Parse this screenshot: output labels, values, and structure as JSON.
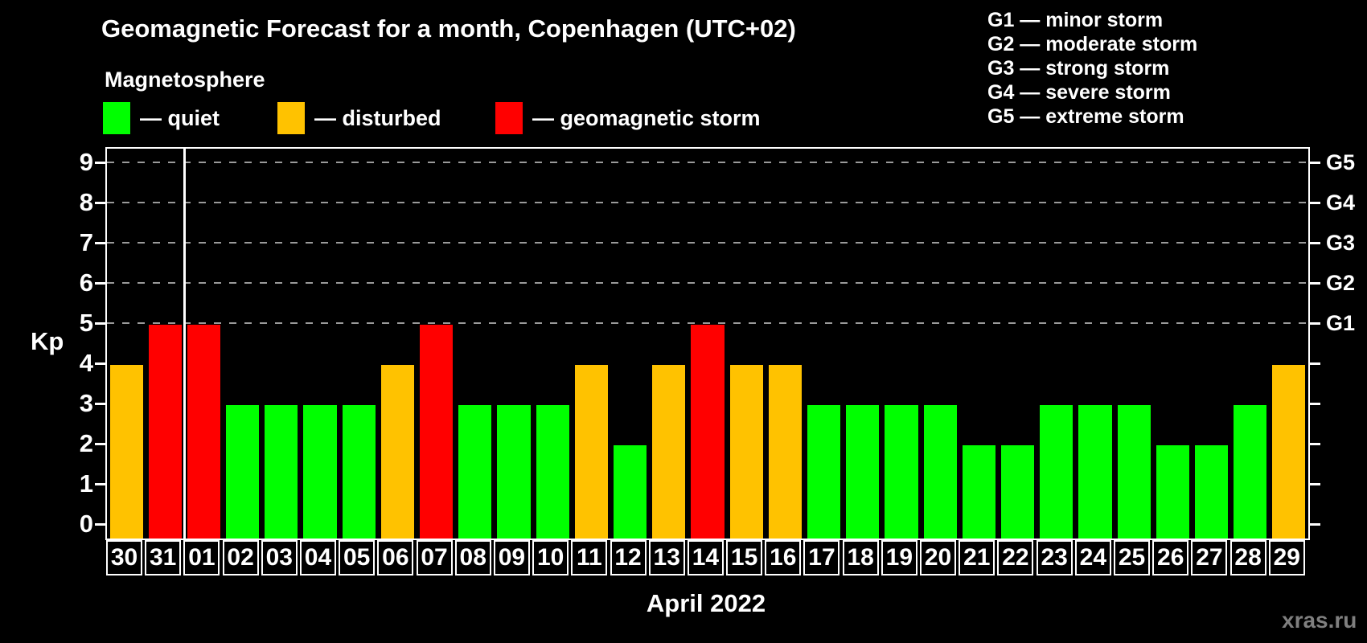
{
  "title": "Geomagnetic Forecast for a month, Copenhagen (UTC+02)",
  "subtitle": "Magnetosphere",
  "watermark": "xras.ru",
  "colors": {
    "background": "#000000",
    "axis": "#ffffff",
    "grid": "#9a9a9a",
    "quiet": "#00ff00",
    "disturbed": "#ffc200",
    "storm": "#ff0000",
    "watermark_text": "#7f7f7f"
  },
  "legend": {
    "items": [
      {
        "status": "quiet",
        "label": "— quiet"
      },
      {
        "status": "disturbed",
        "label": "— disturbed"
      },
      {
        "status": "storm",
        "label": "— geomagnetic storm"
      }
    ]
  },
  "g_legend": [
    "G1 — minor storm",
    "G2 — moderate storm",
    "G3 — strong storm",
    "G4 — severe storm",
    "G5 — extreme storm"
  ],
  "chart_data": {
    "type": "bar",
    "title": "Geomagnetic Forecast for a month, Copenhagen (UTC+02)",
    "xlabel": "April 2022",
    "ylabel": "Kp",
    "ylim": [
      0,
      9.3
    ],
    "yticks": [
      0,
      1,
      2,
      3,
      4,
      5,
      6,
      7,
      8,
      9
    ],
    "gridline_levels": [
      5,
      6,
      7,
      8,
      9
    ],
    "right_axis_labels": [
      {
        "level": 5,
        "label": "G1"
      },
      {
        "level": 6,
        "label": "G2"
      },
      {
        "level": 7,
        "label": "G3"
      },
      {
        "level": 8,
        "label": "G4"
      },
      {
        "level": 9,
        "label": "G5"
      }
    ],
    "month_separator_after_index": 1,
    "legend_position": "top-left",
    "grid": "dashed horizontal at storm levels only",
    "categories": [
      "30",
      "31",
      "01",
      "02",
      "03",
      "04",
      "05",
      "06",
      "07",
      "08",
      "09",
      "10",
      "11",
      "12",
      "13",
      "14",
      "15",
      "16",
      "17",
      "18",
      "19",
      "20",
      "21",
      "22",
      "23",
      "24",
      "25",
      "26",
      "27",
      "28",
      "29"
    ],
    "values": [
      4,
      5,
      5,
      3,
      3,
      3,
      3,
      4,
      5,
      3,
      3,
      3,
      4,
      2,
      4,
      5,
      4,
      4,
      3,
      3,
      3,
      3,
      2,
      2,
      3,
      3,
      3,
      2,
      2,
      3,
      4
    ],
    "statuses": [
      "disturbed",
      "storm",
      "storm",
      "quiet",
      "quiet",
      "quiet",
      "quiet",
      "disturbed",
      "storm",
      "quiet",
      "quiet",
      "quiet",
      "disturbed",
      "quiet",
      "disturbed",
      "storm",
      "disturbed",
      "disturbed",
      "quiet",
      "quiet",
      "quiet",
      "quiet",
      "quiet",
      "quiet",
      "quiet",
      "quiet",
      "quiet",
      "quiet",
      "quiet",
      "quiet",
      "disturbed"
    ]
  }
}
